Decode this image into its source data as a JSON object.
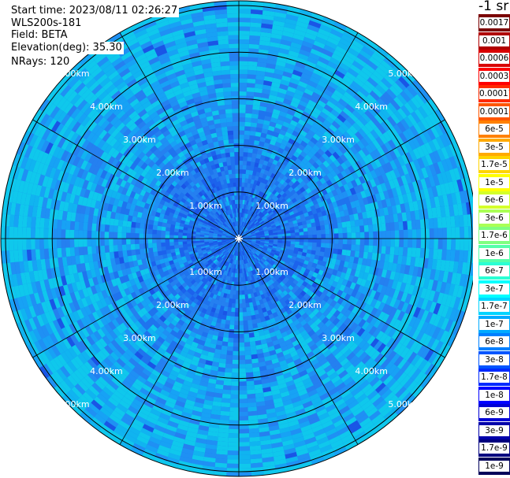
{
  "header": {
    "start_time_label": "Start time: 2023/08/11 02:26:27",
    "instrument_label": "WLS200s-181",
    "field_label": "Field: BETA",
    "elevation_label": "Elevation(deg): 35.30",
    "nrays_label": "NRays: 120"
  },
  "units_label": "-1 sr",
  "chart_data": {
    "type": "heatmap",
    "projection": "polar (PPI)",
    "range_rings_km": [
      1,
      2,
      3,
      4,
      5
    ],
    "range_ring_labels": [
      "1.00km",
      "2.00km",
      "3.00km",
      "4.00km",
      "5.00km"
    ],
    "spoke_angles_deg": [
      0,
      30,
      60,
      90,
      120,
      150
    ],
    "scale": "log",
    "colorbar_ticks": [
      "0.0017",
      "0.001",
      "0.0006",
      "0.0003",
      "0.00017",
      "0.0001",
      "6e-5",
      "3e-5",
      "1.7e-5",
      "1e-5",
      "6e-6",
      "3e-6",
      "1.7e-6",
      "1e-6",
      "6e-7",
      "3e-7",
      "1.7e-7",
      "1e-7",
      "6e-8",
      "3e-8",
      "1.7e-8",
      "1e-8",
      "6e-9",
      "3e-9",
      "1.7e-9",
      "1e-9"
    ],
    "colorbar_colors": [
      "#7a0000",
      "#b00000",
      "#d80000",
      "#ff0000",
      "#ff2a00",
      "#ff5500",
      "#ff8000",
      "#ffaa00",
      "#ffd400",
      "#ffff00",
      "#d4ff2a",
      "#aaff55",
      "#7fff80",
      "#55ffaa",
      "#2affd4",
      "#00ffff",
      "#00d4ff",
      "#00aaff",
      "#0080ff",
      "#0055ff",
      "#002aff",
      "#0000ff",
      "#0000d4",
      "#0000aa",
      "#000080",
      "#00005a"
    ],
    "typical_value_range": [
      "1e-7",
      "6e-8"
    ]
  }
}
